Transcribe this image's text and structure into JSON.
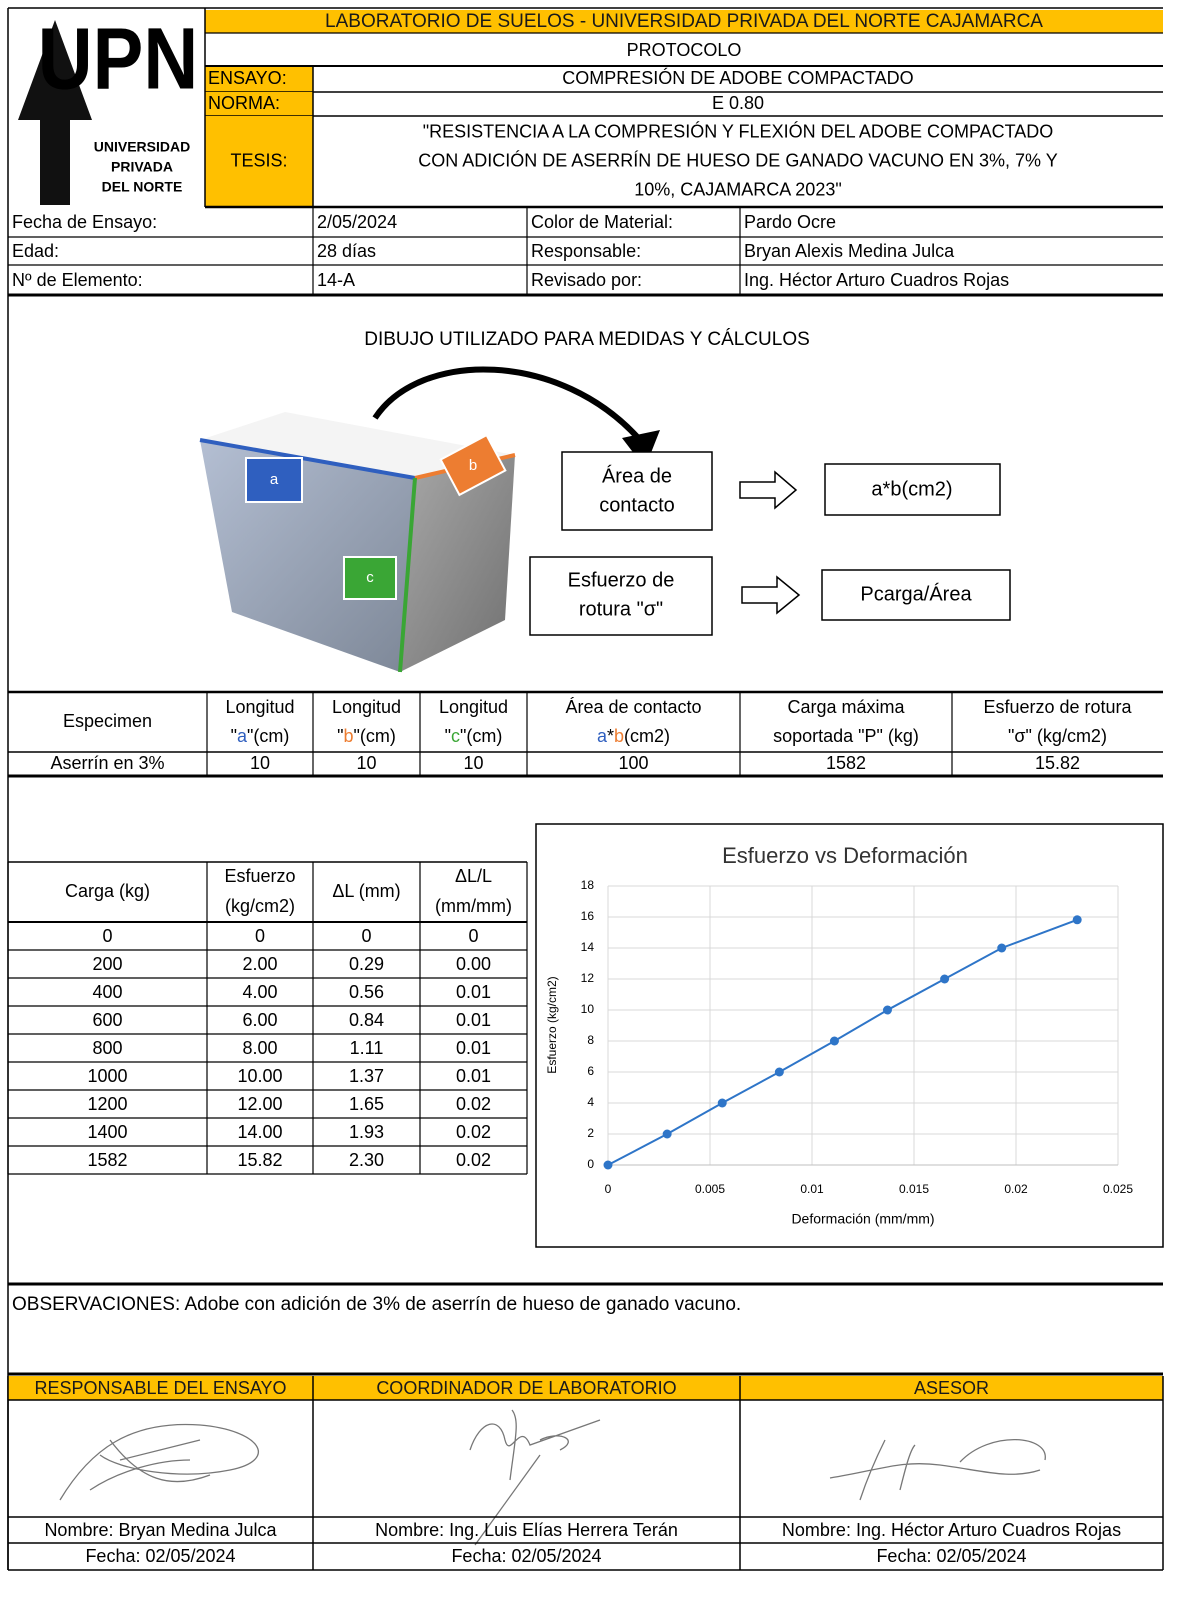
{
  "header": {
    "lab_title": "LABORATORIO DE SUELOS - UNIVERSIDAD PRIVADA DEL NORTE CAJAMARCA",
    "protocol": "PROTOCOLO",
    "logo": {
      "mark": "UPN",
      "lines": [
        "UNIVERSIDAD",
        "PRIVADA",
        "DEL NORTE"
      ]
    },
    "fields": [
      {
        "label": "ENSAYO:",
        "value": [
          "COMPRESIÓN DE ADOBE COMPACTADO"
        ]
      },
      {
        "label": "NORMA:",
        "value": [
          "E 0.80"
        ]
      },
      {
        "label": "TESIS:",
        "value": [
          "\"RESISTENCIA A LA COMPRESIÓN Y FLEXIÓN DEL ADOBE COMPACTADO",
          "CON ADICIÓN DE ASERRÍN DE HUESO DE GANADO VACUNO EN 3%, 7% Y",
          "10%, CAJAMARCA 2023\""
        ]
      }
    ]
  },
  "info": {
    "rows": [
      [
        "Fecha de Ensayo:",
        "2/05/2024",
        "Color de Material:",
        "Pardo Ocre"
      ],
      [
        "Edad:",
        "28 días",
        "Responsable:",
        "Bryan Alexis Medina Julca"
      ],
      [
        "Nº de Elemento:",
        "14-A",
        "Revisado por:",
        "Ing. Héctor Arturo Cuadros Rojas"
      ]
    ]
  },
  "drawing": {
    "title": "DIBUJO UTILIZADO PARA MEDIDAS Y CÁLCULOS",
    "faces": [
      "a",
      "b",
      "c"
    ],
    "area_box": [
      "Área de",
      "contacto"
    ],
    "area_formula": "a*b(cm2)",
    "stress_box": [
      "Esfuerzo de",
      "rotura \"σ\""
    ],
    "stress_formula": "Pcarga/Área"
  },
  "letter_colors": {
    "a": "#2f5fbf",
    "b": "#ed7d31",
    "c": "#3aa635"
  },
  "summary": {
    "header": [
      [
        [
          "Especimen"
        ]
      ],
      [
        [
          "Longitud"
        ],
        [
          "\"",
          "a",
          "\"(cm)"
        ]
      ],
      [
        [
          "Longitud"
        ],
        [
          "\"",
          "b",
          "\"(cm)"
        ]
      ],
      [
        [
          "Longitud"
        ],
        [
          "\"",
          "c",
          "\"(cm)"
        ]
      ],
      [
        [
          "Área de contacto"
        ],
        [
          "a",
          "*",
          "b",
          "(cm2)"
        ]
      ],
      [
        [
          "Carga máxima"
        ],
        [
          "soportada \"P\" (kg)"
        ]
      ],
      [
        [
          "Esfuerzo de rotura"
        ],
        [
          "\"σ\" (kg/cm2)"
        ]
      ]
    ],
    "rows": [
      [
        "Aserrín en 3%",
        "10",
        "10",
        "10",
        "100",
        "1582",
        "15.82"
      ]
    ]
  },
  "test_table": {
    "header": [
      [
        "Carga (kg)"
      ],
      [
        "Esfuerzo",
        "(kg/cm2)"
      ],
      [
        "ΔL (mm)"
      ],
      [
        "ΔL/L",
        "(mm/mm)"
      ]
    ],
    "rows": [
      [
        "0",
        "0",
        "0",
        "0"
      ],
      [
        "200",
        "2.00",
        "0.29",
        "0.00"
      ],
      [
        "400",
        "4.00",
        "0.56",
        "0.01"
      ],
      [
        "600",
        "6.00",
        "0.84",
        "0.01"
      ],
      [
        "800",
        "8.00",
        "1.11",
        "0.01"
      ],
      [
        "1000",
        "10.00",
        "1.37",
        "0.01"
      ],
      [
        "1200",
        "12.00",
        "1.65",
        "0.02"
      ],
      [
        "1400",
        "14.00",
        "1.93",
        "0.02"
      ],
      [
        "1582",
        "15.82",
        "2.30",
        "0.02"
      ]
    ]
  },
  "chart_data": {
    "type": "line",
    "title": "Esfuerzo vs Deformación",
    "x_label": "Deformación (mm/mm)",
    "y_label": "Esfuerzo (kg/cm2)",
    "x": [
      0,
      0.0029,
      0.0056,
      0.0084,
      0.0111,
      0.0137,
      0.0165,
      0.0193,
      0.023
    ],
    "series": [
      {
        "color": "#2e75c8",
        "values": [
          0,
          2,
          4,
          6,
          8,
          10,
          12,
          14,
          15.82
        ]
      }
    ],
    "xlim": [
      0,
      0.025
    ],
    "xticks": [
      0,
      0.005,
      0.01,
      0.015,
      0.02,
      0.025
    ],
    "ylim": [
      0,
      18
    ],
    "yticks": [
      0,
      2,
      4,
      6,
      8,
      10,
      12,
      14,
      16,
      18
    ],
    "grid": true
  },
  "observations": "OBSERVACIONES: Adobe con adición de 3% de aserrín de hueso de ganado vacuno.",
  "signatures": [
    {
      "role": "RESPONSABLE DEL ENSAYO",
      "name": "Nombre: Bryan Medina Julca",
      "date": "Fecha: 02/05/2024"
    },
    {
      "role": "COORDINADOR DE LABORATORIO",
      "name": "Nombre: Ing. Luis Elías Herrera Terán",
      "date": "Fecha: 02/05/2024"
    },
    {
      "role": "ASESOR",
      "name": "Nombre: Ing. Héctor Arturo Cuadros Rojas",
      "date": "Fecha: 02/05/2024"
    }
  ]
}
